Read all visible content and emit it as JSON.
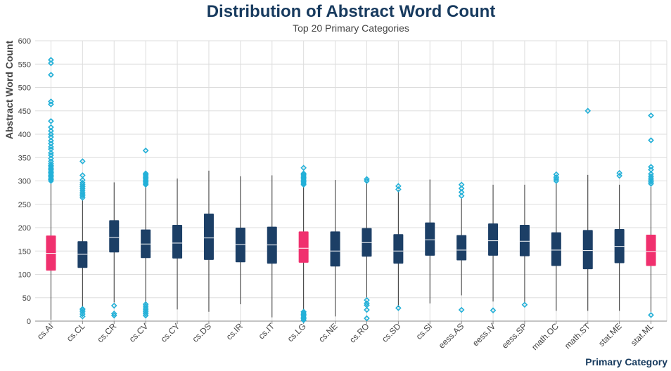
{
  "colors": {
    "box": "#1c3f66",
    "box_highlight": "#f0306e",
    "outlier": "#22b0d8",
    "whisker": "#333333",
    "median": "#ffffff",
    "title": "#173a5e"
  },
  "chart_data": {
    "type": "box",
    "title": "Distribution of Abstract Word Count",
    "subtitle": "Top 20 Primary Categories",
    "xlabel": "Primary Category",
    "ylabel": "Abstract Word Count",
    "ylim": [
      0,
      600
    ],
    "yticks": [
      0,
      50,
      100,
      150,
      200,
      250,
      300,
      350,
      400,
      450,
      500,
      550,
      600
    ],
    "grid": true,
    "categories": [
      "cs.AI",
      "cs.CL",
      "cs.CR",
      "cs.CV",
      "cs.CY",
      "cs.DS",
      "cs.IR",
      "cs.IT",
      "cs.LG",
      "cs.NE",
      "cs.RO",
      "cs.SD",
      "cs.SI",
      "eess.AS",
      "eess.IV",
      "eess.SP",
      "math.OC",
      "math.ST",
      "stat.ME",
      "stat.ML"
    ],
    "boxes": [
      {
        "category": "cs.AI",
        "min": 3,
        "q1": 108,
        "median": 145,
        "q3": 183,
        "max": 297,
        "highlight": true,
        "outliers": [
          300,
          303,
          306,
          309,
          312,
          315,
          318,
          321,
          324,
          327,
          330,
          333,
          337,
          342,
          348,
          355,
          360,
          368,
          373,
          380,
          386,
          394,
          400,
          407,
          415,
          428,
          464,
          470,
          527,
          552,
          559
        ]
      },
      {
        "category": "cs.CL",
        "min": 30,
        "q1": 114,
        "median": 143,
        "q3": 171,
        "max": 260,
        "outliers": [
          10,
          15,
          20,
          24,
          26,
          264,
          268,
          272,
          276,
          280,
          284,
          288,
          292,
          296,
          302,
          312,
          342
        ]
      },
      {
        "category": "cs.CR",
        "min": 40,
        "q1": 147,
        "median": 179,
        "q3": 216,
        "max": 297,
        "outliers": [
          12,
          16,
          33
        ]
      },
      {
        "category": "cs.CV",
        "min": 38,
        "q1": 135,
        "median": 165,
        "q3": 196,
        "max": 290,
        "outliers": [
          12,
          16,
          20,
          24,
          28,
          32,
          36,
          292,
          295,
          298,
          301,
          304,
          307,
          310,
          313,
          316,
          365
        ]
      },
      {
        "category": "cs.CY",
        "min": 25,
        "q1": 134,
        "median": 167,
        "q3": 206,
        "max": 305,
        "outliers": []
      },
      {
        "category": "cs.DS",
        "min": 20,
        "q1": 131,
        "median": 178,
        "q3": 230,
        "max": 322,
        "outliers": []
      },
      {
        "category": "cs.IR",
        "min": 36,
        "q1": 126,
        "median": 164,
        "q3": 200,
        "max": 310,
        "outliers": []
      },
      {
        "category": "cs.IT",
        "min": 8,
        "q1": 123,
        "median": 163,
        "q3": 202,
        "max": 312,
        "outliers": []
      },
      {
        "category": "cs.LG",
        "min": 22,
        "q1": 125,
        "median": 156,
        "q3": 192,
        "max": 290,
        "highlight": true,
        "outliers": [
          2,
          5,
          8,
          11,
          14,
          17,
          20,
          292,
          295,
          298,
          301,
          304,
          307,
          310,
          313,
          316,
          328
        ]
      },
      {
        "category": "cs.NE",
        "min": 10,
        "q1": 117,
        "median": 150,
        "q3": 192,
        "max": 302,
        "outliers": []
      },
      {
        "category": "cs.RO",
        "min": 48,
        "q1": 138,
        "median": 168,
        "q3": 199,
        "max": 298,
        "outliers": [
          6,
          24,
          34,
          38,
          45,
          300,
          304
        ]
      },
      {
        "category": "cs.SD",
        "min": 30,
        "q1": 123,
        "median": 150,
        "q3": 186,
        "max": 280,
        "outliers": [
          28,
          282,
          289
        ]
      },
      {
        "category": "cs.SI",
        "min": 38,
        "q1": 140,
        "median": 174,
        "q3": 211,
        "max": 303,
        "outliers": []
      },
      {
        "category": "eess.AS",
        "min": 55,
        "q1": 130,
        "median": 152,
        "q3": 184,
        "max": 263,
        "outliers": [
          24,
          268,
          276,
          284,
          292
        ]
      },
      {
        "category": "eess.IV",
        "min": 42,
        "q1": 140,
        "median": 172,
        "q3": 209,
        "max": 292,
        "outliers": [
          23
        ]
      },
      {
        "category": "eess.SP",
        "min": 38,
        "q1": 139,
        "median": 171,
        "q3": 206,
        "max": 292,
        "outliers": [
          35
        ]
      },
      {
        "category": "math.OC",
        "min": 22,
        "q1": 118,
        "median": 152,
        "q3": 190,
        "max": 297,
        "outliers": [
          300,
          304,
          308,
          314
        ]
      },
      {
        "category": "math.ST",
        "min": 22,
        "q1": 111,
        "median": 151,
        "q3": 195,
        "max": 313,
        "outliers": [
          450
        ]
      },
      {
        "category": "stat.ME",
        "min": 22,
        "q1": 124,
        "median": 160,
        "q3": 197,
        "max": 292,
        "outliers": [
          311,
          317
        ]
      },
      {
        "category": "stat.ML",
        "min": 20,
        "q1": 118,
        "median": 149,
        "q3": 185,
        "max": 290,
        "highlight": true,
        "outliers": [
          13,
          294,
          298,
          302,
          306,
          310,
          315,
          324,
          330,
          387,
          440
        ]
      }
    ]
  }
}
